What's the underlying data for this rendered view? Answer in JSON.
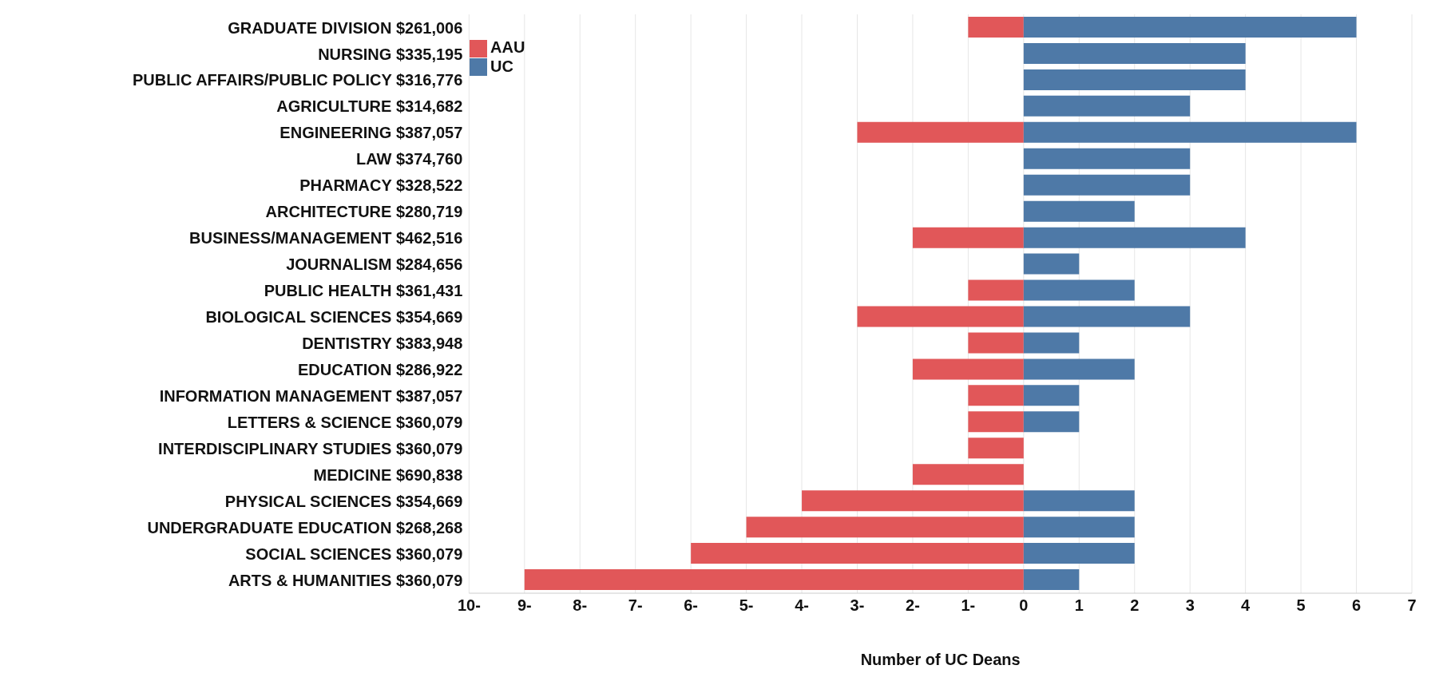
{
  "chart_data": {
    "type": "bar",
    "orientation": "horizontal",
    "stacked": true,
    "categories": [
      "GRADUATE DIVISION $261,006",
      "NURSING $335,195",
      "PUBLIC AFFAIRS/PUBLIC POLICY $316,776",
      "AGRICULTURE $314,682",
      "ENGINEERING $387,057",
      "LAW $374,760",
      "PHARMACY $328,522",
      "ARCHITECTURE $280,719",
      "BUSINESS/MANAGEMENT $462,516",
      "JOURNALISM $284,656",
      "PUBLIC HEALTH $361,431",
      "BIOLOGICAL SCIENCES $354,669",
      "DENTISTRY $383,948",
      "EDUCATION $286,922",
      "INFORMATION MANAGEMENT $387,057",
      "LETTERS & SCIENCE $360,079",
      "INTERDISCIPLINARY STUDIES $360,079",
      "MEDICINE $690,838",
      "PHYSICAL SCIENCES $354,669",
      "UNDERGRADUATE EDUCATION $268,268",
      "SOCIAL SCIENCES $360,079",
      "ARTS & HUMANITIES $360,079"
    ],
    "series": [
      {
        "name": "AAU",
        "color": "#e15759",
        "values": [
          -1,
          null,
          null,
          null,
          -3,
          null,
          null,
          null,
          -2,
          null,
          -1,
          -3,
          -1,
          -2,
          -1,
          -1,
          -1,
          -2,
          -4,
          -5,
          -6,
          -9
        ]
      },
      {
        "name": "UC",
        "color": "#4e79a7",
        "values": [
          6,
          4,
          4,
          3,
          6,
          3,
          3,
          2,
          4,
          1,
          2,
          3,
          1,
          2,
          1,
          1,
          null,
          null,
          2,
          2,
          2,
          1
        ]
      }
    ],
    "xlabel": "Number of UC Deans",
    "xlim": [
      -10,
      7
    ],
    "xticks": [
      {
        "value": -10,
        "label": "10-"
      },
      {
        "value": -9,
        "label": "9-"
      },
      {
        "value": -8,
        "label": "8-"
      },
      {
        "value": -7,
        "label": "7-"
      },
      {
        "value": -6,
        "label": "6-"
      },
      {
        "value": -5,
        "label": "5-"
      },
      {
        "value": -4,
        "label": "4-"
      },
      {
        "value": -3,
        "label": "3-"
      },
      {
        "value": -2,
        "label": "2-"
      },
      {
        "value": -1,
        "label": "1-"
      },
      0,
      1,
      2,
      3,
      4,
      5,
      6,
      7
    ],
    "grid": "x",
    "legend": "top left"
  }
}
